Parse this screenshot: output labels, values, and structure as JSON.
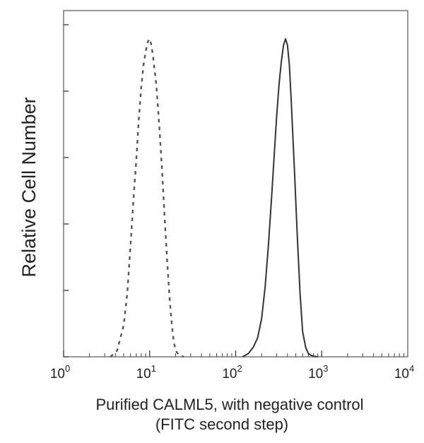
{
  "chart_data": {
    "type": "line",
    "title": "",
    "xlabel": "Purified CALML5, with negative control",
    "xlabel_line2": "(FITC second step)",
    "ylabel": "Relative Cell Number",
    "x_scale": "log",
    "xlim": [
      1,
      10000
    ],
    "ylim": [
      0,
      1
    ],
    "grid": false,
    "x_ticks": [
      {
        "base": "10",
        "exp": "0",
        "value": 1
      },
      {
        "base": "10",
        "exp": "1",
        "value": 10
      },
      {
        "base": "10",
        "exp": "2",
        "value": 100
      },
      {
        "base": "10",
        "exp": "3",
        "value": 1000
      },
      {
        "base": "10",
        "exp": "4",
        "value": 10000
      }
    ],
    "series": [
      {
        "style": "dashed",
        "color": "#555555",
        "x": [
          3.5,
          4.2,
          5,
          5.5,
          6,
          6.5,
          7,
          7.5,
          8,
          8.5,
          9,
          9.5,
          10,
          10.5,
          11,
          12,
          13,
          14,
          15,
          16,
          17,
          18,
          19,
          20,
          22,
          25
        ],
        "y": [
          0.0,
          0.02,
          0.1,
          0.2,
          0.35,
          0.5,
          0.62,
          0.75,
          0.85,
          0.92,
          0.96,
          0.99,
          1.0,
          0.98,
          0.94,
          0.85,
          0.72,
          0.58,
          0.43,
          0.3,
          0.19,
          0.11,
          0.05,
          0.02,
          0.005,
          0.0
        ]
      },
      {
        "style": "solid",
        "color": "#333333",
        "x": [
          120,
          140,
          160,
          180,
          200,
          220,
          240,
          260,
          280,
          300,
          320,
          340,
          360,
          380,
          400,
          420,
          440,
          480,
          520,
          560,
          600,
          650,
          700,
          750,
          800,
          900
        ],
        "y": [
          0.0,
          0.01,
          0.03,
          0.06,
          0.12,
          0.22,
          0.35,
          0.49,
          0.63,
          0.76,
          0.86,
          0.93,
          0.98,
          1.0,
          0.98,
          0.92,
          0.82,
          0.6,
          0.38,
          0.2,
          0.08,
          0.03,
          0.01,
          0.005,
          0.002,
          0.0
        ]
      }
    ]
  }
}
